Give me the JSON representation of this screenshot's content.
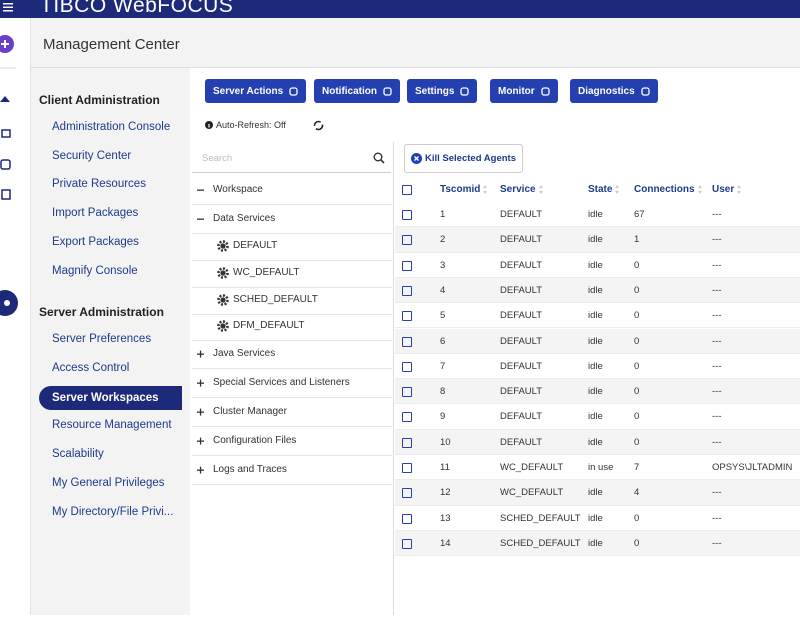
{
  "header": {
    "brand": "TIBCO WebFOCUS",
    "app_title": "Management Center"
  },
  "sidebar": {
    "sections": [
      {
        "title": "Client Administration",
        "items": [
          "Administration Console",
          "Security Center",
          "Private Resources",
          "Import Packages",
          "Export Packages",
          "Magnify Console"
        ]
      },
      {
        "title": "Server Administration",
        "items": [
          "Server Preferences",
          "Access Control",
          "Server Workspaces",
          "Resource Management",
          "Scalability",
          "My General Privileges",
          "My Directory/File Privi..."
        ]
      }
    ]
  },
  "toolbar": {
    "buttons": [
      "Server Actions",
      "Notification",
      "Settings",
      "Monitor",
      "Diagnostics"
    ],
    "auto_refresh": "Auto-Refresh: Off"
  },
  "tree": {
    "search_placeholder": "Search",
    "items": [
      "Workspace",
      "Data Services",
      "DEFAULT",
      "WC_DEFAULT",
      "SCHED_DEFAULT",
      "DFM_DEFAULT",
      "Java Services",
      "Special Services and Listeners",
      "Cluster Manager",
      "Configuration Files",
      "Logs and Traces"
    ]
  },
  "table": {
    "action": "Kill Selected Agents",
    "columns": [
      "Tscomid",
      "Service",
      "State",
      "Connections",
      "User"
    ],
    "rows": [
      [
        1,
        "DEFAULT",
        "idle",
        67,
        "---"
      ],
      [
        2,
        "DEFAULT",
        "idle",
        1,
        "---"
      ],
      [
        3,
        "DEFAULT",
        "idle",
        0,
        "---"
      ],
      [
        4,
        "DEFAULT",
        "idle",
        0,
        "---"
      ],
      [
        5,
        "DEFAULT",
        "idle",
        0,
        "---"
      ],
      [
        6,
        "DEFAULT",
        "idle",
        0,
        "---"
      ],
      [
        7,
        "DEFAULT",
        "idle",
        0,
        "---"
      ],
      [
        8,
        "DEFAULT",
        "idle",
        0,
        "---"
      ],
      [
        9,
        "DEFAULT",
        "idle",
        0,
        "---"
      ],
      [
        10,
        "DEFAULT",
        "idle",
        0,
        "---"
      ],
      [
        11,
        "WC_DEFAULT",
        "in use",
        7,
        "OPSYS\\JLTADMIN"
      ],
      [
        12,
        "WC_DEFAULT",
        "idle",
        4,
        "---"
      ],
      [
        13,
        "SCHED_DEFAULT",
        "idle",
        0,
        "---"
      ],
      [
        14,
        "SCHED_DEFAULT",
        "idle",
        0,
        "---"
      ]
    ]
  }
}
